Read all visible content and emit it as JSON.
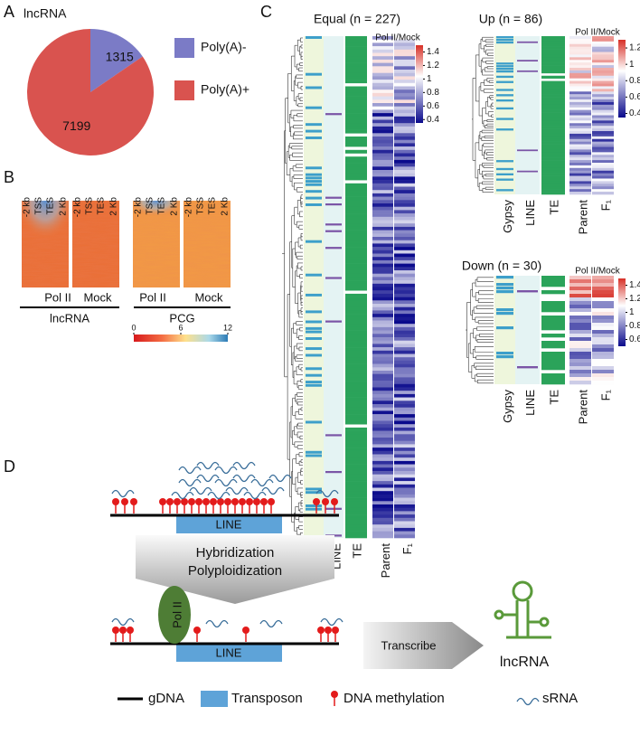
{
  "panels": [
    "A",
    "B",
    "C",
    "D"
  ],
  "chart_data": {
    "type": "pie",
    "title": "lncRNA",
    "categories": [
      "Poly(A)-",
      "Poly(A)+"
    ],
    "values": [
      1315,
      7199
    ],
    "colors": [
      "#7b7bc6",
      "#d9534f"
    ]
  },
  "panel_b": {
    "column_labels": [
      "-2 kb",
      "TSS",
      "TES",
      "2 Kb"
    ],
    "groups": [
      {
        "samples": [
          "Pol II",
          "Mock"
        ],
        "name": "lncRNA"
      },
      {
        "samples": [
          "Pol II",
          "Mock"
        ],
        "name": "PCG"
      }
    ],
    "colorbar": {
      "lim": [
        0,
        12
      ],
      "ticks": [
        0,
        6,
        12
      ]
    }
  },
  "panel_c": {
    "legend_title": "Pol II/Mock",
    "columns": [
      "Gypsy",
      "LINE",
      "TE",
      "Parent",
      "F₁"
    ],
    "heatmaps": [
      {
        "title": "Equal (n = 227)",
        "scale": {
          "lim": [
            0.35,
            1.5
          ],
          "ticks": [
            1.4,
            1.2,
            1,
            0.8,
            0.6,
            0.4
          ]
        }
      },
      {
        "title": "Up (n = 86)",
        "scale": {
          "lim": [
            0.35,
            1.3
          ],
          "ticks": [
            1.2,
            1,
            0.8,
            0.6,
            0.4
          ]
        }
      },
      {
        "title": "Down (n = 30)",
        "scale": {
          "lim": [
            0.5,
            1.5
          ],
          "ticks": [
            1.4,
            1.2,
            1,
            0.8,
            0.6
          ]
        }
      }
    ]
  },
  "panel_d": {
    "transposon": "LINE",
    "steps": [
      "Hybridization",
      "Polyploidization"
    ],
    "polymerase": "Pol II",
    "action": "Transcribe",
    "product": "lncRNA",
    "legend": [
      "gDNA",
      "Transposon",
      "DNA methylation",
      "sRNA"
    ]
  }
}
